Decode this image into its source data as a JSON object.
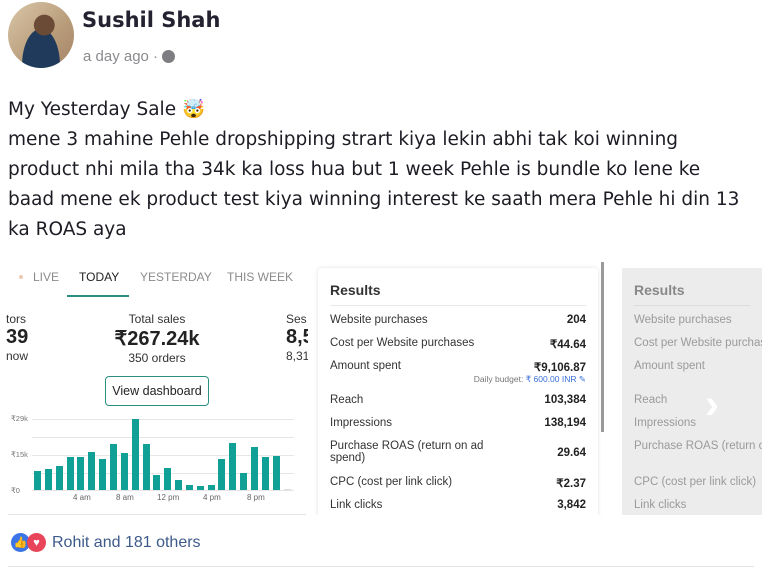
{
  "post": {
    "author": "Sushil Shah",
    "timestamp": "a day ago ·",
    "privacy_icon": "globe-icon",
    "lines": [
      "My Yesterday Sale 🤯",
      "mene 3 mahine Pehle dropshipping strart kiya lekin abhi tak koi winning",
      "product nhi mila tha 34k ka loss hua but 1 week Pehle is bundle ko lene ke",
      "baad mene ek product test kiya winning interest ke saath mera Pehle hi din 13",
      "ka ROAS aya"
    ]
  },
  "dashboard": {
    "tabs": [
      "LIVE",
      "TODAY",
      "YESTERDAY",
      "THIS WEEK"
    ],
    "active_tab": "TODAY",
    "accent": "#2a8f7f",
    "bar_color": "#11a096",
    "stats": {
      "left": {
        "label": "tors",
        "value": "39",
        "sub": "now"
      },
      "center": {
        "label": "Total sales",
        "value": "₹267.24k",
        "sub": "350 orders"
      },
      "right": {
        "label": "Ses",
        "value": "8,5",
        "sub": "8,31"
      }
    },
    "view_button": "View dashboard",
    "chart_data": {
      "type": "bar",
      "y_ticks": [
        "₹29k",
        "₹15k",
        "₹0"
      ],
      "x_ticks": [
        "4 am",
        "8 am",
        "12 pm",
        "4 pm",
        "8 pm"
      ],
      "ylim": [
        0,
        29000
      ],
      "values": [
        7700,
        8500,
        10000,
        13400,
        13400,
        15500,
        12700,
        18600,
        15000,
        29000,
        18900,
        6300,
        8900,
        4100,
        2000,
        1600,
        2000,
        12700,
        19100,
        6800,
        17500,
        13400,
        13800,
        400
      ]
    }
  },
  "results": {
    "title": "Results",
    "rows": [
      {
        "label": "Website purchases",
        "value": "204"
      },
      {
        "label": "Cost per Website purchases",
        "value": "₹44.64"
      },
      {
        "label": "Amount spent",
        "value": "₹9,106.87",
        "budget_label": "Daily budget:",
        "budget_value": "₹ 600.00 INR"
      },
      {
        "label": "Reach",
        "value": "103,384"
      },
      {
        "label": "Impressions",
        "value": "138,194"
      },
      {
        "label": "Purchase ROAS (return on ad spend)",
        "value": "29.64"
      },
      {
        "label": "CPC (cost per link click)",
        "value": "₹2.37"
      },
      {
        "label": "Link clicks",
        "value": "3,842"
      }
    ]
  },
  "reactions": {
    "text": "Rohit and 181 others",
    "icons": [
      "like-icon",
      "love-icon"
    ]
  }
}
